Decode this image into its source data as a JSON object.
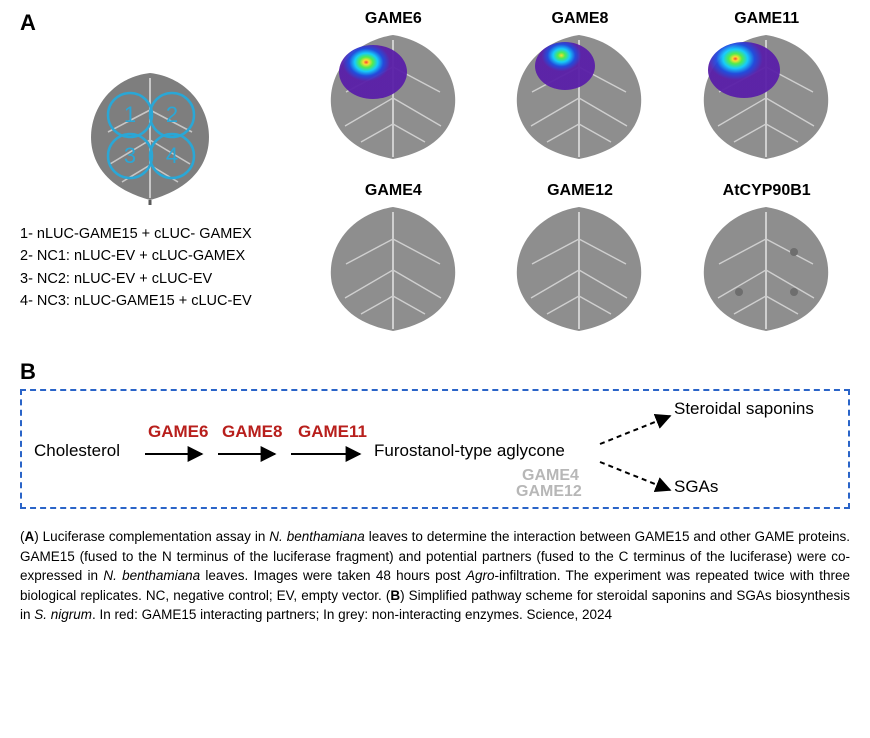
{
  "panelA": {
    "label": "A",
    "ref_leaf": {
      "quadrants": [
        "1",
        "2",
        "3",
        "4"
      ],
      "circle_stroke": "#2aa7d6",
      "quadrant_text_color": "#2aa7d6"
    },
    "legend": [
      "1- nLUC-GAME15 + cLUC- GAMEX",
      "2- NC1: nLUC-EV + cLUC-GAMEX",
      "3- NC2: nLUC-EV + cLUC-EV",
      "4- NC3: nLUC-GAME15 + cLUC-EV"
    ],
    "samples": [
      {
        "label": "GAME6",
        "signal": true
      },
      {
        "label": "GAME8",
        "signal": true
      },
      {
        "label": "GAME11",
        "signal": true
      },
      {
        "label": "GAME4",
        "signal": false
      },
      {
        "label": "GAME12",
        "signal": false
      },
      {
        "label": "AtCYP90B1",
        "signal": false
      }
    ],
    "leaf_fill": "#8e8e8e",
    "leaf_vein": "#c8c8c8",
    "signal_colors": {
      "outer": "#5a1fa8",
      "mid": "#1d49e0",
      "inner": "#10d0ff",
      "hot": "#4ef04a",
      "core1": "#ffe22e",
      "core2": "#ff3b2e"
    }
  },
  "panelB": {
    "label": "B",
    "border_color": "#2a64c8",
    "start": "Cholesterol",
    "red_enzymes": [
      "GAME6",
      "GAME8",
      "GAME11"
    ],
    "intermediate": "Furostanol-type aglycone",
    "grey_enzymes": [
      "GAME4",
      "GAME12"
    ],
    "product_top": "Steroidal saponins",
    "product_bottom": "SGAs",
    "red_color": "#b81f1c",
    "grey_color": "#b7b7b7"
  },
  "caption": {
    "text_parts": [
      "(",
      "A",
      ") Luciferase complementation assay in ",
      "N. benthamiana",
      " leaves to determine the interaction between GAME15 and other GAME proteins. GAME15 (fused to the N terminus of the luciferase fragment) and potential partners (fused to the C terminus of the luciferase) were co-expressed in ",
      "N. benthamiana",
      " leaves. Images were taken 48 hours post ",
      "Agro",
      "-infiltration. The experiment was repeated twice with three biological replicates. NC, negative control; EV, empty vector. (",
      "B",
      ") Simplified pathway scheme for steroidal saponins and SGAs biosynthesis in ",
      "S. nigrum",
      ". In red: GAME15 interacting partners; In grey: non-interacting enzymes. Science, 2024"
    ],
    "bold_idx": [
      1,
      9
    ],
    "italic_idx": [
      3,
      5,
      7,
      11
    ]
  }
}
